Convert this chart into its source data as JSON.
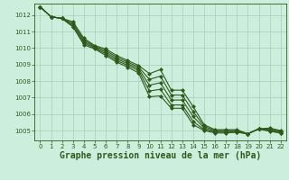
{
  "title": "Graphe pression niveau de la mer (hPa)",
  "background_color": "#cceedd",
  "grid_color": "#aaccbb",
  "line_color": "#2d5a1b",
  "xlim": [
    -0.5,
    22.5
  ],
  "ylim": [
    1004.4,
    1012.7
  ],
  "xticks": [
    0,
    1,
    2,
    3,
    4,
    5,
    6,
    7,
    8,
    9,
    10,
    11,
    12,
    13,
    14,
    15,
    16,
    17,
    18,
    19,
    20,
    21,
    22
  ],
  "yticks": [
    1005,
    1006,
    1007,
    1008,
    1009,
    1010,
    1011,
    1012
  ],
  "series": [
    [
      1012.5,
      1011.9,
      1011.8,
      1011.3,
      1010.2,
      1009.95,
      1009.55,
      1009.15,
      1008.85,
      1008.5,
      1007.05,
      1007.1,
      1006.35,
      1006.35,
      1005.35,
      1005.0,
      1004.85,
      1004.85,
      1004.9,
      1004.8,
      1005.1,
      1004.95,
      1004.85
    ],
    [
      1012.5,
      1011.9,
      1011.8,
      1011.3,
      1010.3,
      1010.0,
      1009.65,
      1009.25,
      1008.95,
      1008.65,
      1007.4,
      1007.5,
      1006.55,
      1006.55,
      1005.55,
      1005.05,
      1004.9,
      1004.9,
      1004.9,
      1004.8,
      1005.1,
      1005.0,
      1004.85
    ],
    [
      1012.5,
      1011.9,
      1011.8,
      1011.4,
      1010.4,
      1010.05,
      1009.75,
      1009.35,
      1009.05,
      1008.75,
      1007.75,
      1007.9,
      1006.85,
      1006.85,
      1005.85,
      1005.15,
      1004.95,
      1004.95,
      1004.95,
      1004.8,
      1005.1,
      1005.05,
      1004.9
    ],
    [
      1012.5,
      1011.9,
      1011.8,
      1011.5,
      1010.5,
      1010.1,
      1009.85,
      1009.45,
      1009.15,
      1008.85,
      1008.1,
      1008.3,
      1007.15,
      1007.15,
      1006.15,
      1005.25,
      1005.0,
      1005.0,
      1005.0,
      1004.8,
      1005.1,
      1005.1,
      1004.95
    ],
    [
      1012.5,
      1011.9,
      1011.8,
      1011.6,
      1010.6,
      1010.15,
      1009.95,
      1009.55,
      1009.25,
      1008.95,
      1008.45,
      1008.7,
      1007.45,
      1007.45,
      1006.45,
      1005.35,
      1005.05,
      1005.05,
      1005.05,
      1004.8,
      1005.1,
      1005.15,
      1005.0
    ]
  ],
  "marker": "D",
  "marker_size": 2.0,
  "linewidth": 0.8,
  "title_fontsize": 7,
  "tick_fontsize": 5.0,
  "figwidth": 3.2,
  "figheight": 2.0,
  "dpi": 100
}
